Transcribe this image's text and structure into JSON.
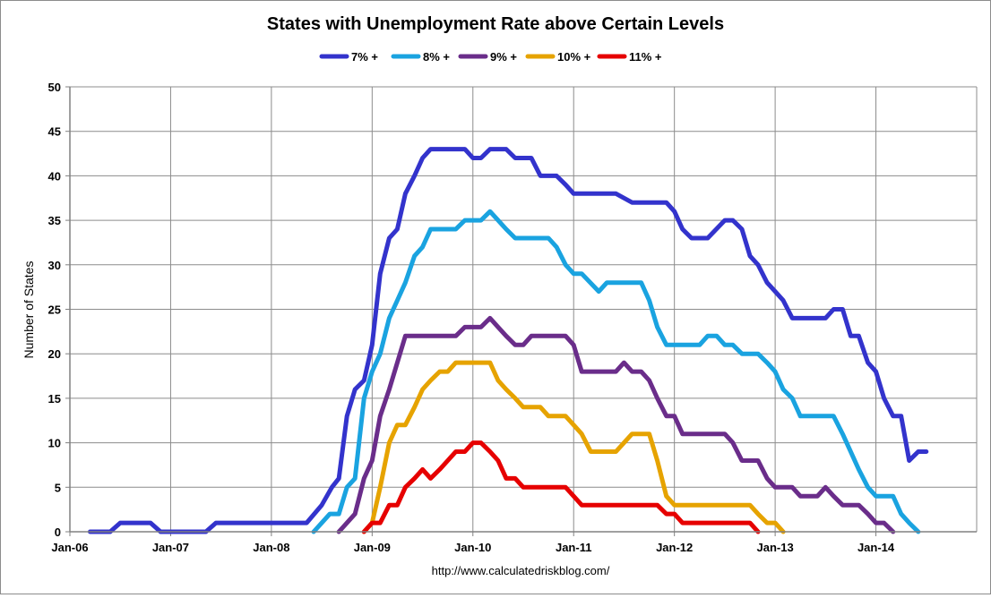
{
  "chart_data": {
    "type": "line",
    "title": "States with Unemployment Rate above Certain Levels",
    "ylabel": "Number of States",
    "xlabel": "",
    "source": "http://www.calculatedriskblog.com/",
    "ylim": [
      0,
      50
    ],
    "yticks": [
      0,
      5,
      10,
      15,
      20,
      25,
      30,
      35,
      40,
      45,
      50
    ],
    "xlim": [
      2006.0,
      2015.0
    ],
    "xticks": [
      {
        "value": 2006,
        "label": "Jan-06"
      },
      {
        "value": 2007,
        "label": "Jan-07"
      },
      {
        "value": 2008,
        "label": "Jan-08"
      },
      {
        "value": 2009,
        "label": "Jan-09"
      },
      {
        "value": 2010,
        "label": "Jan-10"
      },
      {
        "value": 2011,
        "label": "Jan-11"
      },
      {
        "value": 2012,
        "label": "Jan-12"
      },
      {
        "value": 2013,
        "label": "Jan-13"
      },
      {
        "value": 2014,
        "label": "Jan-14"
      }
    ],
    "grid": true,
    "legend_position": "top-center",
    "series": [
      {
        "name": "7% +",
        "color": "#3333cc",
        "points": [
          [
            2006.2,
            0
          ],
          [
            2006.4,
            0
          ],
          [
            2006.5,
            1
          ],
          [
            2006.8,
            1
          ],
          [
            2006.9,
            0
          ],
          [
            2007.35,
            0
          ],
          [
            2007.45,
            1
          ],
          [
            2008.35,
            1
          ],
          [
            2008.5,
            3
          ],
          [
            2008.6,
            5
          ],
          [
            2008.67,
            6
          ],
          [
            2008.75,
            13
          ],
          [
            2008.83,
            16
          ],
          [
            2008.92,
            17
          ],
          [
            2009.0,
            21
          ],
          [
            2009.08,
            29
          ],
          [
            2009.17,
            33
          ],
          [
            2009.25,
            34
          ],
          [
            2009.33,
            38
          ],
          [
            2009.42,
            40
          ],
          [
            2009.5,
            42
          ],
          [
            2009.58,
            43
          ],
          [
            2009.92,
            43
          ],
          [
            2010.0,
            42
          ],
          [
            2010.08,
            42
          ],
          [
            2010.17,
            43
          ],
          [
            2010.33,
            43
          ],
          [
            2010.42,
            42
          ],
          [
            2010.58,
            42
          ],
          [
            2010.67,
            40
          ],
          [
            2010.83,
            40
          ],
          [
            2010.92,
            39
          ],
          [
            2011.0,
            38
          ],
          [
            2011.42,
            38
          ],
          [
            2011.58,
            37
          ],
          [
            2011.92,
            37
          ],
          [
            2012.0,
            36
          ],
          [
            2012.08,
            34
          ],
          [
            2012.17,
            33
          ],
          [
            2012.33,
            33
          ],
          [
            2012.5,
            35
          ],
          [
            2012.58,
            35
          ],
          [
            2012.67,
            34
          ],
          [
            2012.75,
            31
          ],
          [
            2012.83,
            30
          ],
          [
            2012.92,
            28
          ],
          [
            2013.0,
            27
          ],
          [
            2013.08,
            26
          ],
          [
            2013.17,
            24
          ],
          [
            2013.5,
            24
          ],
          [
            2013.58,
            25
          ],
          [
            2013.67,
            25
          ],
          [
            2013.75,
            22
          ],
          [
            2013.83,
            22
          ],
          [
            2013.92,
            19
          ],
          [
            2014.0,
            18
          ],
          [
            2014.08,
            15
          ],
          [
            2014.17,
            13
          ],
          [
            2014.25,
            13
          ],
          [
            2014.33,
            8
          ],
          [
            2014.42,
            9
          ],
          [
            2014.5,
            9
          ]
        ]
      },
      {
        "name": "8% +",
        "color": "#1aa3e0",
        "points": [
          [
            2008.42,
            0
          ],
          [
            2008.5,
            1
          ],
          [
            2008.58,
            2
          ],
          [
            2008.67,
            2
          ],
          [
            2008.75,
            5
          ],
          [
            2008.83,
            6
          ],
          [
            2008.92,
            15
          ],
          [
            2009.0,
            18
          ],
          [
            2009.08,
            20
          ],
          [
            2009.17,
            24
          ],
          [
            2009.25,
            26
          ],
          [
            2009.33,
            28
          ],
          [
            2009.42,
            31
          ],
          [
            2009.5,
            32
          ],
          [
            2009.58,
            34
          ],
          [
            2009.83,
            34
          ],
          [
            2009.92,
            35
          ],
          [
            2010.08,
            35
          ],
          [
            2010.17,
            36
          ],
          [
            2010.25,
            35
          ],
          [
            2010.33,
            34
          ],
          [
            2010.42,
            33
          ],
          [
            2010.75,
            33
          ],
          [
            2010.83,
            32
          ],
          [
            2010.92,
            30
          ],
          [
            2011.0,
            29
          ],
          [
            2011.08,
            29
          ],
          [
            2011.25,
            27
          ],
          [
            2011.33,
            28
          ],
          [
            2011.67,
            28
          ],
          [
            2011.75,
            26
          ],
          [
            2011.83,
            23
          ],
          [
            2011.92,
            21
          ],
          [
            2012.25,
            21
          ],
          [
            2012.33,
            22
          ],
          [
            2012.42,
            22
          ],
          [
            2012.5,
            21
          ],
          [
            2012.58,
            21
          ],
          [
            2012.67,
            20
          ],
          [
            2012.83,
            20
          ],
          [
            2012.92,
            19
          ],
          [
            2013.0,
            18
          ],
          [
            2013.08,
            16
          ],
          [
            2013.17,
            15
          ],
          [
            2013.25,
            13
          ],
          [
            2013.58,
            13
          ],
          [
            2013.67,
            11
          ],
          [
            2013.75,
            9
          ],
          [
            2013.83,
            7
          ],
          [
            2013.92,
            5
          ],
          [
            2014.0,
            4
          ],
          [
            2014.17,
            4
          ],
          [
            2014.25,
            2
          ],
          [
            2014.33,
            1
          ],
          [
            2014.42,
            0
          ]
        ]
      },
      {
        "name": "9% +",
        "color": "#6a2d8a",
        "points": [
          [
            2008.67,
            0
          ],
          [
            2008.75,
            1
          ],
          [
            2008.83,
            2
          ],
          [
            2008.92,
            6
          ],
          [
            2009.0,
            8
          ],
          [
            2009.08,
            13
          ],
          [
            2009.17,
            16
          ],
          [
            2009.25,
            19
          ],
          [
            2009.33,
            22
          ],
          [
            2009.83,
            22
          ],
          [
            2009.92,
            23
          ],
          [
            2010.08,
            23
          ],
          [
            2010.17,
            24
          ],
          [
            2010.25,
            23
          ],
          [
            2010.33,
            22
          ],
          [
            2010.42,
            21
          ],
          [
            2010.5,
            21
          ],
          [
            2010.58,
            22
          ],
          [
            2010.92,
            22
          ],
          [
            2011.0,
            21
          ],
          [
            2011.08,
            18
          ],
          [
            2011.42,
            18
          ],
          [
            2011.5,
            19
          ],
          [
            2011.58,
            18
          ],
          [
            2011.67,
            18
          ],
          [
            2011.75,
            17
          ],
          [
            2011.83,
            15
          ],
          [
            2011.92,
            13
          ],
          [
            2012.0,
            13
          ],
          [
            2012.08,
            11
          ],
          [
            2012.5,
            11
          ],
          [
            2012.58,
            10
          ],
          [
            2012.67,
            8
          ],
          [
            2012.83,
            8
          ],
          [
            2012.92,
            6
          ],
          [
            2013.0,
            5
          ],
          [
            2013.17,
            5
          ],
          [
            2013.25,
            4
          ],
          [
            2013.42,
            4
          ],
          [
            2013.5,
            5
          ],
          [
            2013.58,
            4
          ],
          [
            2013.67,
            3
          ],
          [
            2013.83,
            3
          ],
          [
            2013.92,
            2
          ],
          [
            2014.0,
            1
          ],
          [
            2014.08,
            1
          ],
          [
            2014.17,
            0
          ]
        ]
      },
      {
        "name": "10% +",
        "color": "#e6a300",
        "points": [
          [
            2008.92,
            0
          ],
          [
            2009.0,
            1
          ],
          [
            2009.08,
            5
          ],
          [
            2009.17,
            10
          ],
          [
            2009.25,
            12
          ],
          [
            2009.33,
            12
          ],
          [
            2009.42,
            14
          ],
          [
            2009.5,
            16
          ],
          [
            2009.58,
            17
          ],
          [
            2009.67,
            18
          ],
          [
            2009.75,
            18
          ],
          [
            2009.83,
            19
          ],
          [
            2010.17,
            19
          ],
          [
            2010.25,
            17
          ],
          [
            2010.33,
            16
          ],
          [
            2010.42,
            15
          ],
          [
            2010.5,
            14
          ],
          [
            2010.67,
            14
          ],
          [
            2010.75,
            13
          ],
          [
            2010.92,
            13
          ],
          [
            2011.0,
            12
          ],
          [
            2011.08,
            11
          ],
          [
            2011.17,
            9
          ],
          [
            2011.42,
            9
          ],
          [
            2011.5,
            10
          ],
          [
            2011.58,
            11
          ],
          [
            2011.75,
            11
          ],
          [
            2011.83,
            8
          ],
          [
            2011.92,
            4
          ],
          [
            2012.0,
            3
          ],
          [
            2012.75,
            3
          ],
          [
            2012.83,
            2
          ],
          [
            2012.92,
            1
          ],
          [
            2013.0,
            1
          ],
          [
            2013.08,
            0
          ]
        ]
      },
      {
        "name": "11% +",
        "color": "#e60000",
        "points": [
          [
            2008.92,
            0
          ],
          [
            2009.0,
            1
          ],
          [
            2009.08,
            1
          ],
          [
            2009.17,
            3
          ],
          [
            2009.25,
            3
          ],
          [
            2009.33,
            5
          ],
          [
            2009.42,
            6
          ],
          [
            2009.5,
            7
          ],
          [
            2009.58,
            6
          ],
          [
            2009.67,
            7
          ],
          [
            2009.75,
            8
          ],
          [
            2009.83,
            9
          ],
          [
            2009.92,
            9
          ],
          [
            2010.0,
            10
          ],
          [
            2010.08,
            10
          ],
          [
            2010.17,
            9
          ],
          [
            2010.25,
            8
          ],
          [
            2010.33,
            6
          ],
          [
            2010.42,
            6
          ],
          [
            2010.5,
            5
          ],
          [
            2010.92,
            5
          ],
          [
            2011.0,
            4
          ],
          [
            2011.08,
            3
          ],
          [
            2011.75,
            3
          ],
          [
            2011.83,
            3
          ],
          [
            2011.92,
            2
          ],
          [
            2012.0,
            2
          ],
          [
            2012.08,
            1
          ],
          [
            2012.67,
            1
          ],
          [
            2012.75,
            1
          ],
          [
            2012.83,
            0
          ]
        ]
      }
    ]
  }
}
